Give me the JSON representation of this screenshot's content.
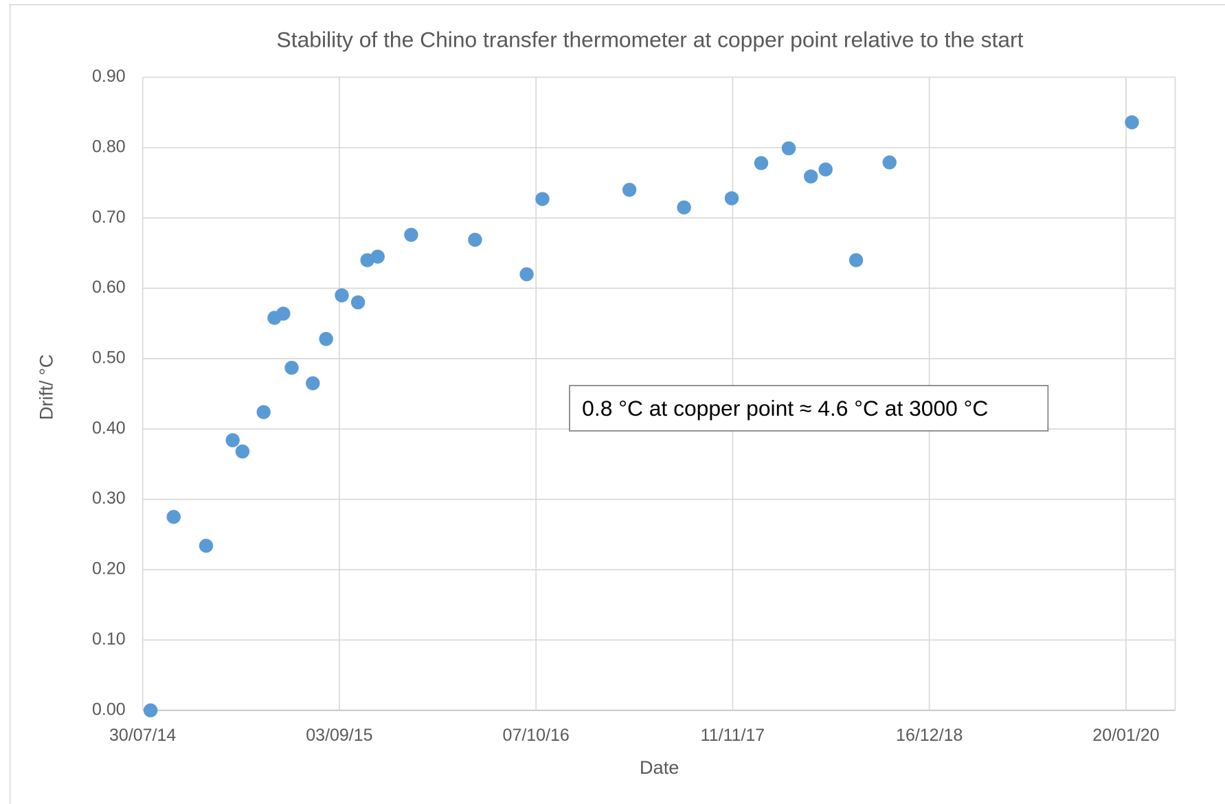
{
  "chart_data": {
    "type": "scatter",
    "title": "Stability of the Chino transfer thermometer at copper point relative to the start",
    "x_label": "Date",
    "y_label": "Drift/ °C",
    "annotation": "0.8 °C at copper point ≈ 4.6 °C at 3000 °C",
    "series": [
      {
        "name": "Drift",
        "color": "#5b9bd5",
        "x": [
          "2014-08-15",
          "2014-10-01",
          "2014-12-06",
          "2015-01-29",
          "2015-02-18",
          "2015-04-02",
          "2015-04-24",
          "2015-05-12",
          "2015-05-29",
          "2015-07-11",
          "2015-08-07",
          "2015-09-08",
          "2015-10-11",
          "2015-10-30",
          "2015-11-20",
          "2016-01-27",
          "2016-06-05",
          "2016-09-18",
          "2016-10-20",
          "2017-04-15",
          "2017-08-04",
          "2017-11-09",
          "2018-01-08",
          "2018-03-05",
          "2018-04-19",
          "2018-05-19",
          "2018-07-20",
          "2018-09-26",
          "2020-02-01"
        ],
        "values": [
          0.0,
          0.275,
          0.234,
          0.384,
          0.368,
          0.424,
          0.558,
          0.564,
          0.487,
          0.465,
          0.528,
          0.59,
          0.58,
          0.64,
          0.645,
          0.676,
          0.669,
          0.62,
          0.727,
          0.74,
          0.715,
          0.728,
          0.778,
          0.799,
          0.759,
          0.769,
          0.64,
          0.779,
          0.836
        ]
      }
    ],
    "xlim": [
      "2014-07-30",
      "2020-04-29"
    ],
    "xticks": [
      {
        "value": "2014-07-30",
        "label": "30/07/14"
      },
      {
        "value": "2015-09-03",
        "label": "03/09/15"
      },
      {
        "value": "2016-10-07",
        "label": "07/10/16"
      },
      {
        "value": "2017-11-11",
        "label": "11/11/17"
      },
      {
        "value": "2018-12-16",
        "label": "16/12/18"
      },
      {
        "value": "2020-01-20",
        "label": "20/01/20"
      }
    ],
    "ylim": [
      0,
      0.9
    ],
    "yticks": [
      {
        "value": 0,
        "label": "0.00"
      },
      {
        "value": 0.1,
        "label": "0.10"
      },
      {
        "value": 0.2,
        "label": "0.20"
      },
      {
        "value": 0.3,
        "label": "0.30"
      },
      {
        "value": 0.4,
        "label": "0.40"
      },
      {
        "value": 0.5,
        "label": "0.50"
      },
      {
        "value": 0.6,
        "label": "0.60"
      },
      {
        "value": 0.7,
        "label": "0.70"
      },
      {
        "value": 0.8,
        "label": "0.80"
      },
      {
        "value": 0.9,
        "label": "0.90"
      }
    ],
    "grid": true
  }
}
